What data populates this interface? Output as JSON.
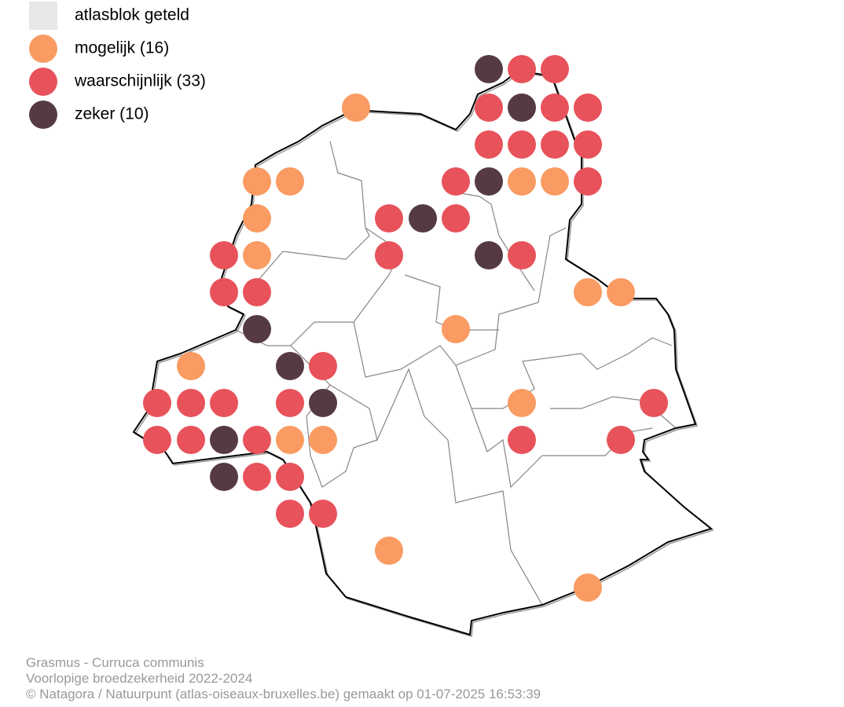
{
  "legend": [
    {
      "label": "atlasblok geteld",
      "color": "#e8e8e8"
    },
    {
      "label": "mogelijk (16)",
      "color": "#f99b62"
    },
    {
      "label": "waarschijnlijk (33)",
      "color": "#e8525a"
    },
    {
      "label": "zeker (10)",
      "color": "#553a44"
    }
  ],
  "caption": [
    "Grasmus - Curruca communis",
    "Voorlopige broedzekerheid 2022-2024",
    "© Natagora / Natuurpunt (atlas-oiseaux-bruxelles.be) gemaakt op 01-07-2025 16:53:39"
  ]
}
